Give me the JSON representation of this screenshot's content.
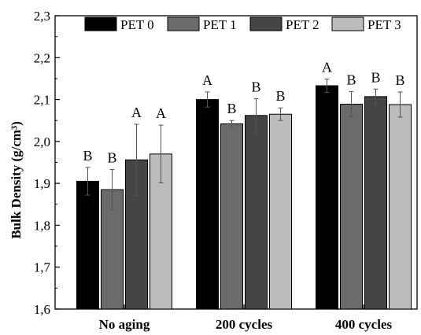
{
  "chart_data": {
    "type": "bar",
    "ylabel": "Bulk Density (g/cm³)",
    "xlabel": "",
    "ylim": [
      1.6,
      2.3
    ],
    "yticks": [
      "1,6",
      "1,7",
      "1,8",
      "1,9",
      "2,0",
      "2,1",
      "2,2",
      "2,3"
    ],
    "categories": [
      "No aging",
      "200 cycles",
      "400 cycles"
    ],
    "legend_position": "top",
    "series": [
      {
        "name": "PET 0",
        "color": "#000000",
        "values": [
          1.905,
          2.1,
          2.133
        ],
        "errors": [
          0.033,
          0.018,
          0.016
        ],
        "letters": [
          "B",
          "A",
          "A"
        ]
      },
      {
        "name": "PET 1",
        "color": "#6b6b6b",
        "values": [
          1.885,
          2.042,
          2.089
        ],
        "errors": [
          0.048,
          0.008,
          0.03
        ],
        "letters": [
          "B",
          "B",
          "B"
        ]
      },
      {
        "name": "PET 2",
        "color": "#454545",
        "values": [
          1.956,
          2.062,
          2.107
        ],
        "errors": [
          0.085,
          0.04,
          0.018
        ],
        "letters": [
          "A",
          "B",
          "B"
        ]
      },
      {
        "name": "PET 3",
        "color": "#bdbdbd",
        "values": [
          1.97,
          2.065,
          2.088
        ],
        "errors": [
          0.069,
          0.015,
          0.03
        ],
        "letters": [
          "A",
          "B",
          "B"
        ]
      }
    ]
  }
}
